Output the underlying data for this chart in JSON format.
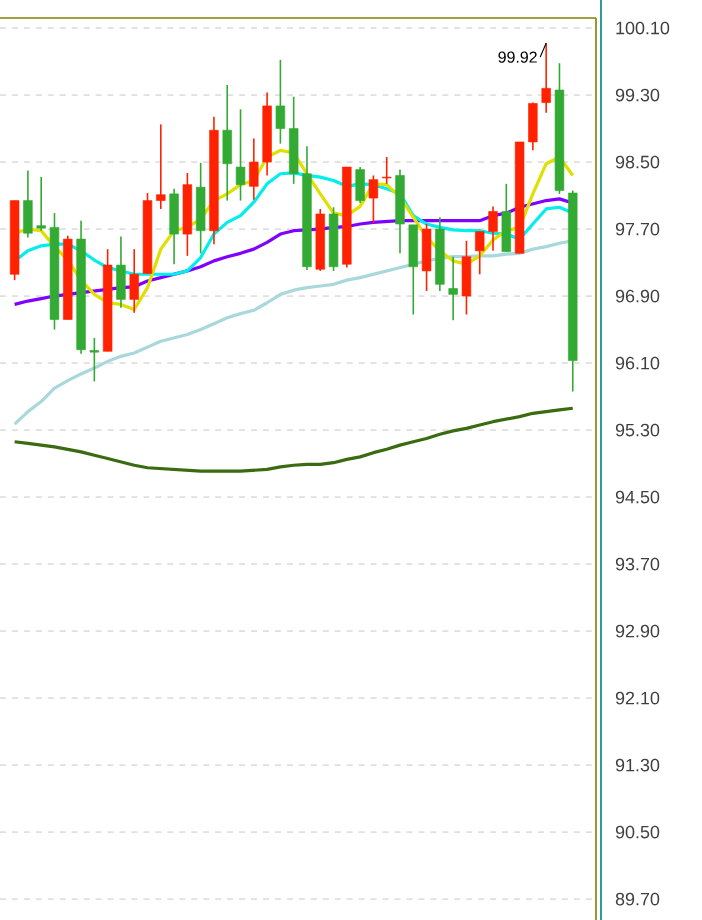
{
  "chart_data": {
    "type": "candlestick",
    "categories": [
      null,
      null,
      null,
      null,
      null,
      null,
      null,
      null,
      null,
      null,
      null,
      null,
      null,
      null,
      null,
      null,
      null,
      null,
      null,
      null,
      null,
      null,
      null,
      null,
      null,
      null,
      null,
      null,
      null,
      null,
      null,
      null,
      null,
      null,
      null,
      null,
      null,
      null,
      null,
      null,
      null,
      null,
      null
    ],
    "ohlc": [
      [
        97.16,
        98.04,
        97.09,
        98.04
      ],
      [
        98.04,
        98.4,
        97.6,
        97.65
      ],
      [
        97.74,
        98.32,
        97.68,
        97.71
      ],
      [
        97.72,
        97.89,
        96.5,
        96.62
      ],
      [
        96.62,
        97.62,
        96.62,
        97.58
      ],
      [
        97.58,
        97.8,
        96.21,
        96.26
      ],
      [
        96.25,
        96.4,
        95.88,
        96.23
      ],
      [
        96.24,
        97.46,
        96.24,
        97.27
      ],
      [
        97.27,
        97.61,
        96.76,
        96.86
      ],
      [
        96.86,
        97.46,
        96.7,
        97.16
      ],
      [
        97.17,
        98.13,
        97.17,
        98.04
      ],
      [
        98.04,
        98.95,
        97.94,
        98.11
      ],
      [
        98.12,
        98.18,
        97.28,
        97.64
      ],
      [
        97.64,
        98.37,
        97.38,
        98.23
      ],
      [
        98.2,
        98.49,
        97.41,
        97.68
      ],
      [
        97.68,
        99.04,
        97.52,
        98.88
      ],
      [
        98.88,
        99.42,
        98.04,
        98.48
      ],
      [
        98.44,
        99.13,
        98.04,
        98.23
      ],
      [
        98.21,
        98.78,
        98.05,
        98.5
      ],
      [
        98.5,
        99.33,
        98.34,
        99.17
      ],
      [
        99.17,
        99.72,
        98.72,
        98.9
      ],
      [
        98.9,
        99.28,
        98.24,
        98.36
      ],
      [
        98.36,
        98.69,
        97.21,
        97.25
      ],
      [
        97.22,
        97.94,
        97.2,
        97.88
      ],
      [
        97.88,
        97.96,
        97.2,
        97.25
      ],
      [
        97.28,
        98.44,
        97.24,
        98.44
      ],
      [
        98.41,
        98.44,
        98.01,
        98.04
      ],
      [
        98.07,
        98.34,
        97.77,
        98.29
      ],
      [
        98.31,
        98.56,
        98.24,
        98.32
      ],
      [
        98.34,
        98.41,
        97.41,
        97.76
      ],
      [
        97.75,
        97.75,
        96.68,
        97.25
      ],
      [
        97.2,
        97.76,
        96.96,
        97.7
      ],
      [
        97.7,
        97.84,
        96.96,
        97.04
      ],
      [
        96.99,
        97.37,
        96.61,
        96.92
      ],
      [
        96.9,
        97.56,
        96.68,
        97.37
      ],
      [
        97.44,
        97.67,
        97.16,
        97.67
      ],
      [
        97.67,
        97.97,
        97.44,
        97.91
      ],
      [
        97.91,
        98.24,
        97.43,
        97.43
      ],
      [
        97.41,
        98.74,
        97.41,
        98.74
      ],
      [
        98.74,
        99.21,
        98.64,
        99.2
      ],
      [
        99.21,
        99.92,
        99.09,
        99.38
      ],
      [
        99.36,
        99.68,
        98.12,
        98.16
      ],
      [
        98.13,
        98.16,
        95.76,
        96.13
      ]
    ],
    "colors": [
      "#ff2200",
      "#33aa33",
      "#33aa33",
      "#33aa33",
      "#ff2200",
      "#33aa33",
      "#33aa33",
      "#ff2200",
      "#33aa33",
      "#ff2200",
      "#ff2200",
      "#ff2200",
      "#33aa33",
      "#ff2200",
      "#33aa33",
      "#ff2200",
      "#33aa33",
      "#33aa33",
      "#ff2200",
      "#ff2200",
      "#33aa33",
      "#33aa33",
      "#33aa33",
      "#ff2200",
      "#33aa33",
      "#ff2200",
      "#33aa33",
      "#ff2200",
      "#ff2200",
      "#33aa33",
      "#33aa33",
      "#ff2200",
      "#33aa33",
      "#33aa33",
      "#ff2200",
      "#ff2200",
      "#ff2200",
      "#33aa33",
      "#ff2200",
      "#ff2200",
      "#ff2200",
      "#33aa33",
      "#33aa33"
    ],
    "series": [
      {
        "type": "line",
        "color": "#3a6b10",
        "values": [
          95.16,
          95.14,
          95.12,
          95.1,
          95.07,
          95.04,
          95.0,
          94.96,
          94.92,
          94.88,
          94.85,
          94.84,
          94.83,
          94.82,
          94.81,
          94.81,
          94.81,
          94.81,
          94.82,
          94.83,
          94.86,
          94.88,
          94.89,
          94.89,
          94.91,
          94.95,
          94.98,
          95.03,
          95.07,
          95.12,
          95.16,
          95.2,
          95.25,
          95.29,
          95.32,
          95.36,
          95.4,
          95.43,
          95.46,
          95.5,
          95.52,
          95.54,
          95.56
        ]
      },
      {
        "type": "line",
        "color": "#a8d8dc",
        "values": [
          95.37,
          95.52,
          95.64,
          95.8,
          95.89,
          95.97,
          96.04,
          96.12,
          96.18,
          96.22,
          96.29,
          96.36,
          96.4,
          96.44,
          96.5,
          96.57,
          96.64,
          96.69,
          96.73,
          96.82,
          96.92,
          96.97,
          97.0,
          97.02,
          97.04,
          97.09,
          97.12,
          97.16,
          97.2,
          97.24,
          97.28,
          97.32,
          97.35,
          97.37,
          97.37,
          97.38,
          97.38,
          97.4,
          97.41,
          97.46,
          97.49,
          97.53,
          97.56
        ]
      },
      {
        "type": "line",
        "color": "#8000ff",
        "values": [
          96.8,
          96.84,
          96.87,
          96.9,
          96.92,
          96.94,
          96.96,
          96.98,
          97.0,
          97.01,
          97.08,
          97.12,
          97.16,
          97.2,
          97.25,
          97.32,
          97.37,
          97.41,
          97.46,
          97.54,
          97.64,
          97.68,
          97.69,
          97.7,
          97.72,
          97.73,
          97.76,
          97.78,
          97.79,
          97.8,
          97.8,
          97.8,
          97.8,
          97.8,
          97.8,
          97.8,
          97.86,
          97.89,
          97.96,
          98.0,
          98.04,
          98.06,
          98.01
        ]
      },
      {
        "type": "line",
        "color": "#00eeee",
        "values": [
          97.32,
          97.44,
          97.5,
          97.52,
          97.52,
          97.44,
          97.33,
          97.24,
          97.2,
          97.16,
          97.16,
          97.16,
          97.16,
          97.2,
          97.36,
          97.64,
          97.78,
          97.86,
          98.02,
          98.24,
          98.36,
          98.37,
          98.34,
          98.32,
          98.28,
          98.21,
          98.24,
          98.23,
          98.18,
          98.12,
          97.86,
          97.76,
          97.72,
          97.69,
          97.68,
          97.68,
          97.65,
          97.64,
          97.58,
          97.76,
          97.94,
          97.96,
          97.89
        ]
      },
      {
        "type": "line",
        "color": "#e0e000",
        "values": [
          97.65,
          97.7,
          97.68,
          97.49,
          97.33,
          97.09,
          96.92,
          96.82,
          96.8,
          96.74,
          97.0,
          97.46,
          97.68,
          97.72,
          97.82,
          98.04,
          98.12,
          98.23,
          98.28,
          98.56,
          98.64,
          98.61,
          98.36,
          98.12,
          97.89,
          97.86,
          97.97,
          98.24,
          98.23,
          98.08,
          97.84,
          97.6,
          97.44,
          97.32,
          97.28,
          97.38,
          97.57,
          97.68,
          97.72,
          98.12,
          98.48,
          98.56,
          98.34
        ]
      }
    ],
    "ylim": [
      89.45,
      100.22
    ],
    "yticks": [
      {
        "value": 100.1,
        "label": "100.10"
      },
      {
        "value": 99.3,
        "label": "99.30"
      },
      {
        "value": 98.5,
        "label": "98.50"
      },
      {
        "value": 97.7,
        "label": "97.70"
      },
      {
        "value": 96.9,
        "label": "96.90"
      },
      {
        "value": 96.1,
        "label": "96.10"
      },
      {
        "value": 95.3,
        "label": "95.30"
      },
      {
        "value": 94.5,
        "label": "94.50"
      },
      {
        "value": 93.7,
        "label": "93.70"
      },
      {
        "value": 92.9,
        "label": "92.90"
      },
      {
        "value": 92.1,
        "label": "92.10"
      },
      {
        "value": 91.3,
        "label": "91.30"
      },
      {
        "value": 90.5,
        "label": "90.50"
      },
      {
        "value": 89.7,
        "label": "89.70"
      }
    ],
    "grid": "y",
    "tick_labels": "y",
    "annotations": [
      "99.92"
    ]
  }
}
